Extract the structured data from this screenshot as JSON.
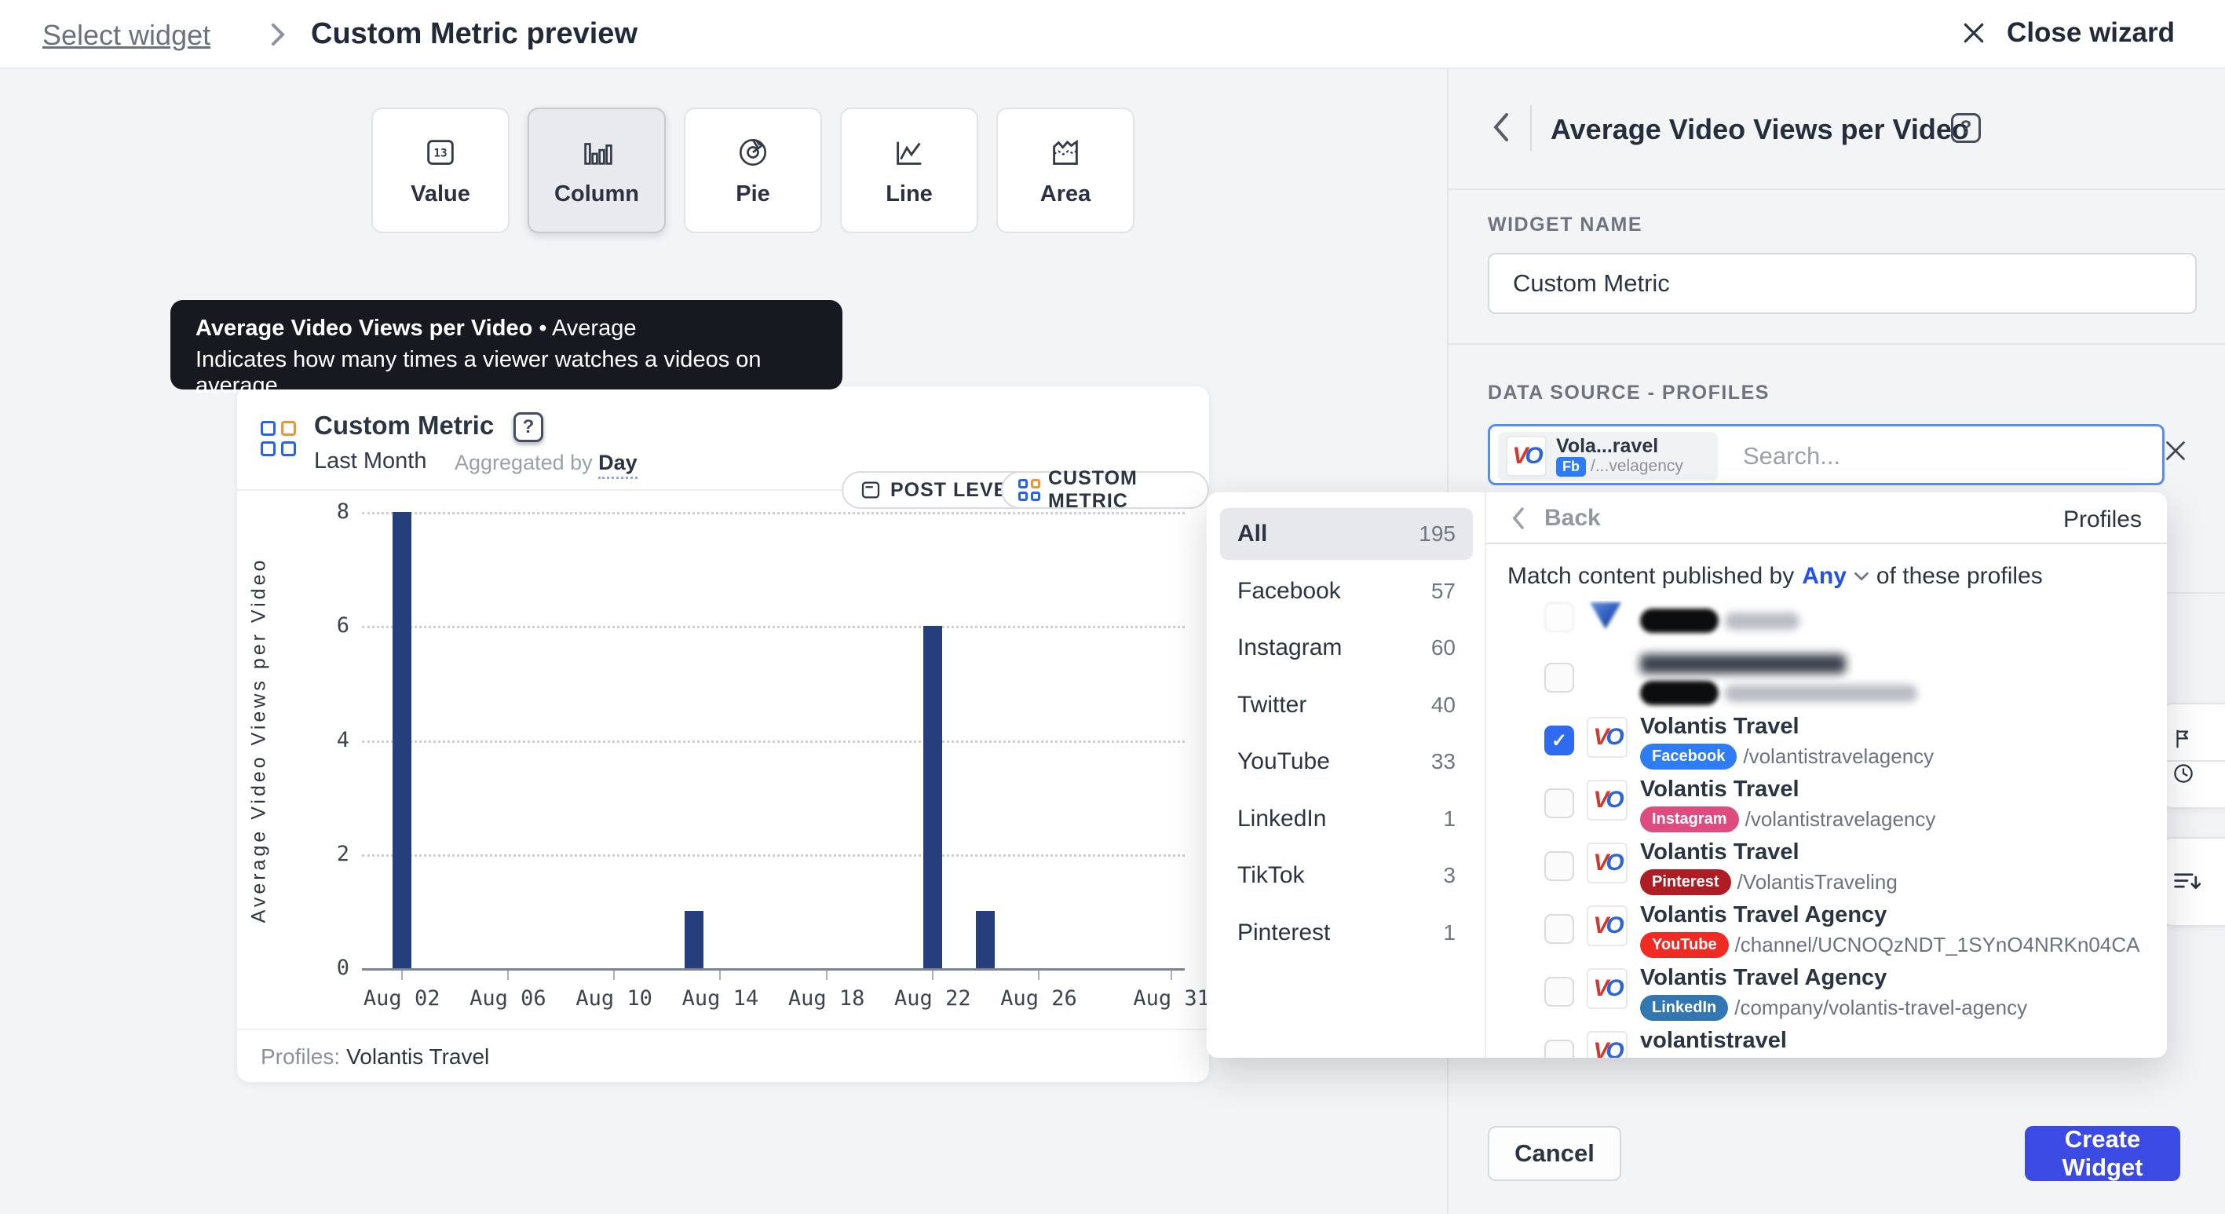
{
  "topbar": {
    "back_label": "Select widget",
    "title": "Custom Metric preview",
    "close_label": "Close wizard"
  },
  "widget_types": {
    "value_icon_text": "13",
    "items": [
      {
        "label": "Value",
        "icon": "value",
        "selected": false
      },
      {
        "label": "Column",
        "icon": "column",
        "selected": true
      },
      {
        "label": "Pie",
        "icon": "pie",
        "selected": false
      },
      {
        "label": "Line",
        "icon": "line",
        "selected": false
      },
      {
        "label": "Area",
        "icon": "area",
        "selected": false
      }
    ]
  },
  "tooltip": {
    "title": "Average Video Views per Video",
    "separator": "•",
    "subtitle": "Average",
    "description": "Indicates how many times a viewer watches a videos on average."
  },
  "chart_card": {
    "title": "Custom Metric",
    "period": "Last Month",
    "aggregated_prefix": "Aggregated by",
    "aggregated_value": "Day",
    "badges": {
      "post_level": "POST LEVEL",
      "custom_metric": "CUSTOM METRIC"
    },
    "footer_label": "Profiles:",
    "footer_value": "Volantis Travel"
  },
  "chart_data": {
    "type": "bar",
    "title": "Custom Metric",
    "period": "Last Month",
    "aggregation": "Day",
    "series_name": "Average Video Views per Video",
    "ylabel": "Average Video Views per Video",
    "ylim": [
      0,
      8
    ],
    "yticks": [
      0,
      2,
      4,
      6,
      8
    ],
    "grid": "dotted horizontal",
    "xticks": [
      "Aug 02",
      "Aug 06",
      "Aug 10",
      "Aug 14",
      "Aug 18",
      "Aug 22",
      "Aug 26",
      "Aug 31"
    ],
    "xtick_days": [
      2,
      6,
      10,
      14,
      18,
      22,
      26,
      31
    ],
    "x_domain_days": 31,
    "points": [
      {
        "date": "Aug 02",
        "day": 2,
        "value": 8
      },
      {
        "date": "Aug 13",
        "day": 13,
        "value": 1
      },
      {
        "date": "Aug 22",
        "day": 22,
        "value": 6
      },
      {
        "date": "Aug 24",
        "day": 24,
        "value": 1
      }
    ],
    "bar_color": "#253e7c"
  },
  "network_filter": {
    "items": [
      {
        "label": "All",
        "count": 195,
        "selected": true
      },
      {
        "label": "Facebook",
        "count": 57,
        "selected": false
      },
      {
        "label": "Instagram",
        "count": 60,
        "selected": false
      },
      {
        "label": "Twitter",
        "count": 40,
        "selected": false
      },
      {
        "label": "YouTube",
        "count": 33,
        "selected": false
      },
      {
        "label": "LinkedIn",
        "count": 1,
        "selected": false
      },
      {
        "label": "TikTok",
        "count": 3,
        "selected": false
      },
      {
        "label": "Pinterest",
        "count": 1,
        "selected": false
      }
    ]
  },
  "panel": {
    "title": "Average Video Views per Video",
    "widget_name_label": "WIDGET NAME",
    "widget_name_value": "Custom Metric",
    "data_source_label": "DATA SOURCE - PROFILES",
    "search_placeholder": "Search...",
    "chip": {
      "name": "Vola...ravel",
      "badge": "Fb",
      "handle": "/...velagency"
    },
    "buttons": {
      "cancel": "Cancel",
      "create": "Create Widget"
    }
  },
  "profiles_popover": {
    "back_label": "Back",
    "header_right": "Profiles",
    "match_prefix": "Match content published by",
    "match_any": "Any",
    "match_suffix": "of these profiles",
    "colors": {
      "checkbox_checked": "#2e6bf0"
    },
    "profiles": [
      {
        "redacted": true,
        "logo": "triangle",
        "checked": false,
        "partial_top": true
      },
      {
        "redacted": true,
        "logo": "photo",
        "checked": false
      },
      {
        "name": "Volantis Travel",
        "network": "Facebook",
        "handle": "/volantistravelagency",
        "checked": true,
        "badge_color": "#2e7cf6",
        "logo": "vo"
      },
      {
        "name": "Volantis Travel",
        "network": "Instagram",
        "handle": "/volantistravelagency",
        "checked": false,
        "badge_color": "#de4b80",
        "logo": "vo"
      },
      {
        "name": "Volantis Travel",
        "network": "Pinterest",
        "handle": "/VolantisTraveling",
        "checked": false,
        "badge_color": "#ae1d23",
        "logo": "vo"
      },
      {
        "name": "Volantis Travel Agency",
        "network": "YouTube",
        "handle": "/channel/UCNOQzNDT_1SYnO4NRKn04CA",
        "checked": false,
        "badge_color": "#ef2b24",
        "logo": "vo"
      },
      {
        "name": "Volantis Travel Agency",
        "network": "LinkedIn",
        "handle": "/company/volantis-travel-agency",
        "checked": false,
        "badge_color": "#3277b2",
        "logo": "vo"
      },
      {
        "name": "volantistravel",
        "network": null,
        "handle": null,
        "checked": false,
        "badge_color": null,
        "logo": "vo",
        "partial_bottom": true
      }
    ]
  }
}
